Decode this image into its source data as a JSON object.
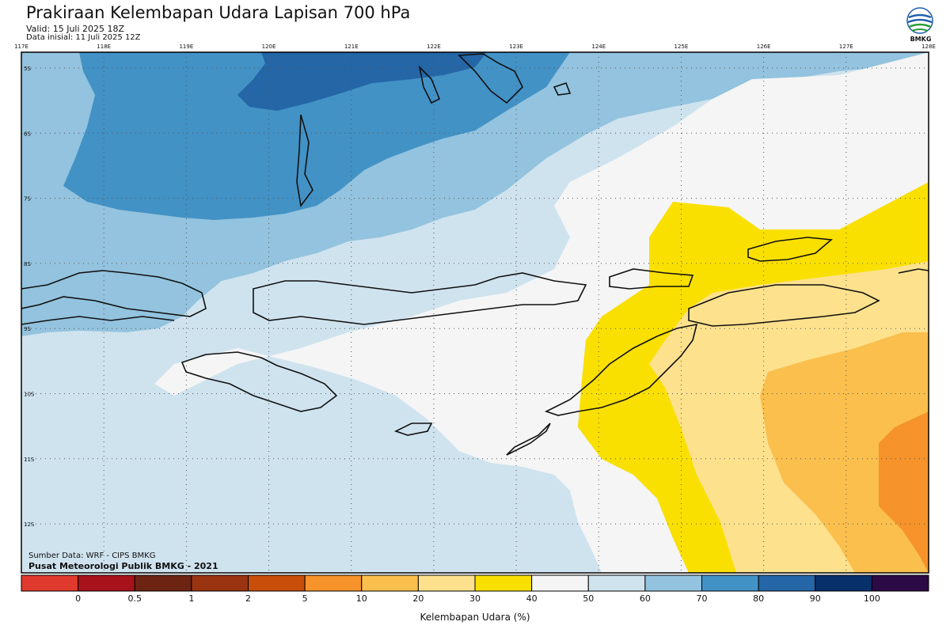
{
  "header": {
    "title": "Prakiraan Kelembapan Udara Lapisan 700 hPa",
    "valid": "Valid: 15 Juli 2025 18Z",
    "init": "Data inisial: 11 Juli 2025 12Z",
    "logo_text": "BMKG"
  },
  "map": {
    "lon_labels": [
      "117E",
      "118E",
      "119E",
      "120E",
      "121E",
      "122E",
      "123E",
      "124E",
      "125E",
      "126E",
      "127E",
      "128E"
    ],
    "lat_labels": [
      "5S",
      "6S",
      "7S",
      "8S",
      "9S",
      "10S",
      "11S",
      "12S"
    ],
    "lon_range": [
      117,
      128
    ],
    "lat_range": [
      -4.7,
      -12.8
    ],
    "grid": "dotted"
  },
  "source": {
    "line1": "Sumber Data: WRF - CIPS BMKG",
    "line2": "Pusat Meteorologi Publik BMKG - 2021"
  },
  "colorbar": {
    "title": "Kelembapan Udara (%)",
    "labels": [
      "0",
      "0.5",
      "1",
      "2",
      "5",
      "10",
      "20",
      "30",
      "40",
      "50",
      "60",
      "70",
      "80",
      "90",
      "100"
    ],
    "colors": [
      "#e03a2e",
      "#a8121a",
      "#6e2412",
      "#9a3410",
      "#c84e0a",
      "#f6932a",
      "#fbbf4d",
      "#fde18d",
      "#fae000",
      "#f5f5f5",
      "#cfe3ef",
      "#93c3de",
      "#4292c6",
      "#2466a6",
      "#08306b",
      "#2b0a45"
    ]
  }
}
